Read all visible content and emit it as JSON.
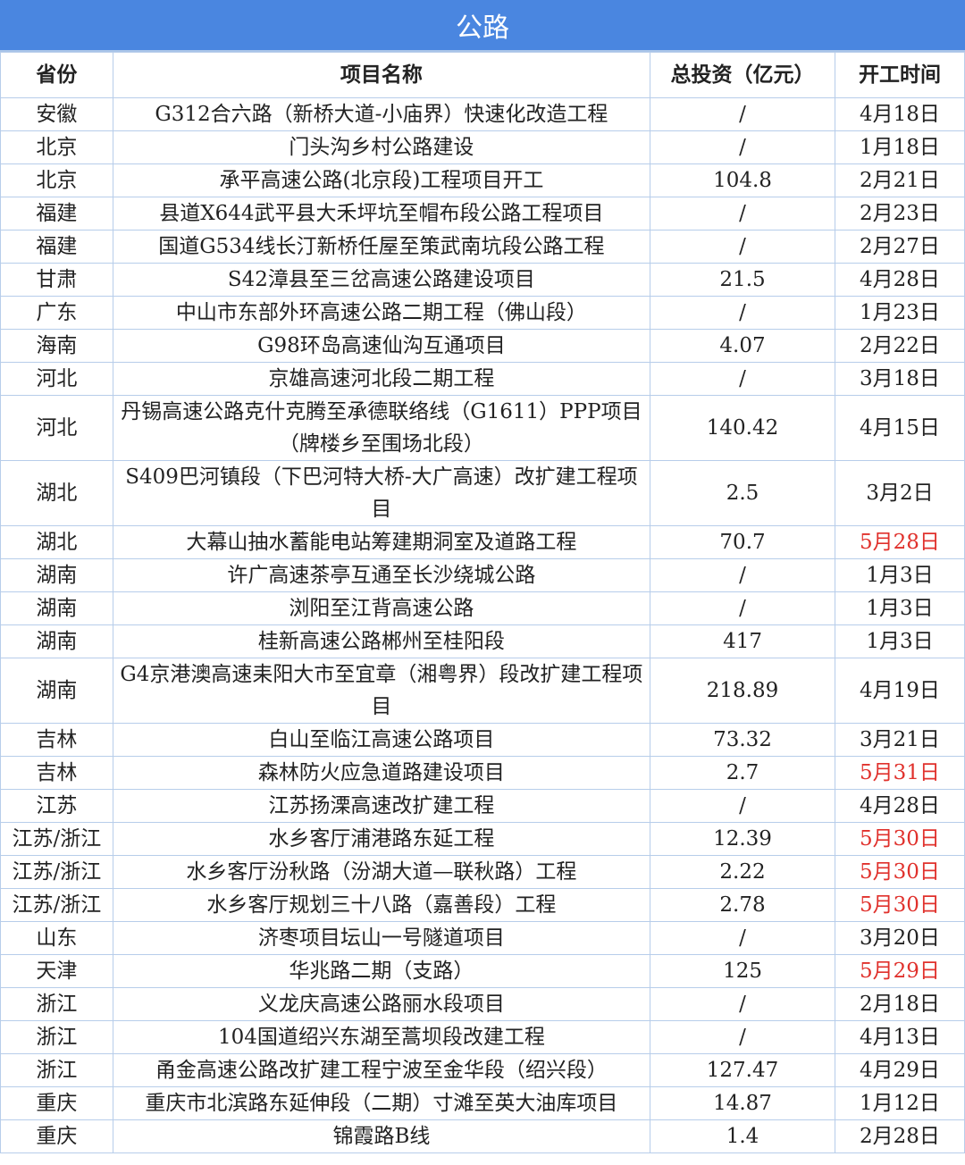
{
  "title": "公路",
  "columns": [
    "省份",
    "项目名称",
    "总投资（亿元）",
    "开工时间"
  ],
  "colors": {
    "title_bg": "#4a86e0",
    "border": "#b7cdea",
    "highlight_date": "#e0312c"
  },
  "rows": [
    {
      "province": "安徽",
      "name": "G312合六路（新桥大道-小庙界）快速化改造工程",
      "investment": "/",
      "date": "4月18日",
      "highlight": false
    },
    {
      "province": "北京",
      "name": "门头沟乡村公路建设",
      "investment": "/",
      "date": "1月18日",
      "highlight": false
    },
    {
      "province": "北京",
      "name": "承平高速公路(北京段)工程项目开工",
      "investment": "104.8",
      "date": "2月21日",
      "highlight": false
    },
    {
      "province": "福建",
      "name": "县道X644武平县大禾坪坑至帽布段公路工程项目",
      "investment": "/",
      "date": "2月23日",
      "highlight": false
    },
    {
      "province": "福建",
      "name": "国道G534线长汀新桥任屋至策武南坑段公路工程",
      "investment": "/",
      "date": "2月27日",
      "highlight": false
    },
    {
      "province": "甘肃",
      "name": "S42漳县至三岔高速公路建设项目",
      "investment": "21.5",
      "date": "4月28日",
      "highlight": false
    },
    {
      "province": "广东",
      "name": "中山市东部外环高速公路二期工程（佛山段）",
      "investment": "/",
      "date": "1月23日",
      "highlight": false
    },
    {
      "province": "海南",
      "name": "G98环岛高速仙沟互通项目",
      "investment": "4.07",
      "date": "2月22日",
      "highlight": false
    },
    {
      "province": "河北",
      "name": "京雄高速河北段二期工程",
      "investment": "/",
      "date": "3月18日",
      "highlight": false
    },
    {
      "province": "河北",
      "name": "丹锡高速公路克什克腾至承德联络线（G1611）PPP项目（牌楼乡至围场北段）",
      "investment": "140.42",
      "date": "4月15日",
      "highlight": false,
      "double": true
    },
    {
      "province": "湖北",
      "name": "S409巴河镇段（下巴河特大桥-大广高速）改扩建工程项目",
      "investment": "2.5",
      "date": "3月2日",
      "highlight": false,
      "double": true
    },
    {
      "province": "湖北",
      "name": "大幕山抽水蓄能电站筹建期洞室及道路工程",
      "investment": "70.7",
      "date": "5月28日",
      "highlight": true
    },
    {
      "province": "湖南",
      "name": "许广高速茶亭互通至长沙绕城公路",
      "investment": "/",
      "date": "1月3日",
      "highlight": false
    },
    {
      "province": "湖南",
      "name": "浏阳至江背高速公路",
      "investment": "/",
      "date": "1月3日",
      "highlight": false
    },
    {
      "province": "湖南",
      "name": "桂新高速公路郴州至桂阳段",
      "investment": "417",
      "date": "1月3日",
      "highlight": false
    },
    {
      "province": "湖南",
      "name": "G4京港澳高速耒阳大市至宜章（湘粤界）段改扩建工程项目",
      "investment": "218.89",
      "date": "4月19日",
      "highlight": false,
      "double": true
    },
    {
      "province": "吉林",
      "name": "白山至临江高速公路项目",
      "investment": "73.32",
      "date": "3月21日",
      "highlight": false
    },
    {
      "province": "吉林",
      "name": "森林防火应急道路建设项目",
      "investment": "2.7",
      "date": "5月31日",
      "highlight": true
    },
    {
      "province": "江苏",
      "name": "江苏扬溧高速改扩建工程",
      "investment": "/",
      "date": "4月28日",
      "highlight": false
    },
    {
      "province": "江苏/浙江",
      "name": "水乡客厅浦港路东延工程",
      "investment": "12.39",
      "date": "5月30日",
      "highlight": true
    },
    {
      "province": "江苏/浙江",
      "name": "水乡客厅汾秋路（汾湖大道—联秋路）工程",
      "investment": "2.22",
      "date": "5月30日",
      "highlight": true
    },
    {
      "province": "江苏/浙江",
      "name": "水乡客厅规划三十八路（嘉善段）工程",
      "investment": "2.78",
      "date": "5月30日",
      "highlight": true
    },
    {
      "province": "山东",
      "name": "济枣项目坛山一号隧道项目",
      "investment": "/",
      "date": "3月20日",
      "highlight": false
    },
    {
      "province": "天津",
      "name": "华兆路二期（支路）",
      "investment": "125",
      "date": "5月29日",
      "highlight": true
    },
    {
      "province": "浙江",
      "name": "义龙庆高速公路丽水段项目",
      "investment": "/",
      "date": "2月18日",
      "highlight": false
    },
    {
      "province": "浙江",
      "name": "104国道绍兴东湖至蒿坝段改建工程",
      "investment": "/",
      "date": "4月13日",
      "highlight": false
    },
    {
      "province": "浙江",
      "name": "甬金高速公路改扩建工程宁波至金华段（绍兴段）",
      "investment": "127.47",
      "date": "4月29日",
      "highlight": false
    },
    {
      "province": "重庆",
      "name": "重庆市北滨路东延伸段（二期）寸滩至英大油库项目",
      "investment": "14.87",
      "date": "1月12日",
      "highlight": false
    },
    {
      "province": "重庆",
      "name": "锦霞路B线",
      "investment": "1.4",
      "date": "2月28日",
      "highlight": false
    }
  ]
}
